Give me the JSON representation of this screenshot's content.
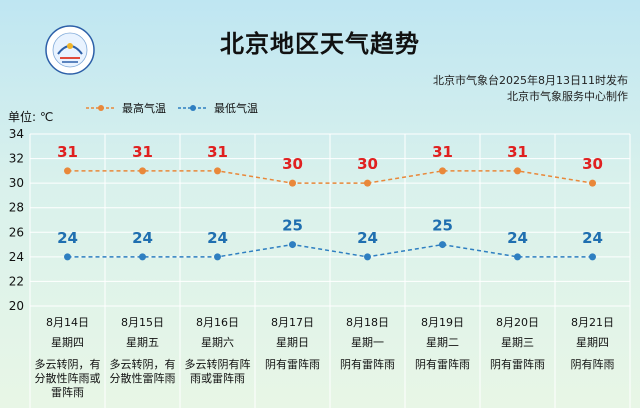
{
  "header": {
    "title": "北京地区天气趋势",
    "publisher_line1": "北京市气象台2025年8月13日11时发布",
    "publisher_line2": "北京市气象服务中心制作",
    "unit": "单位: ℃"
  },
  "colors": {
    "high": "#e9883a",
    "low": "#2f7fc1",
    "high_label": "#e02020",
    "low_label": "#1f6fb0",
    "grid": "#ffffff"
  },
  "legend": {
    "high": "最高气温",
    "low": "最低气温"
  },
  "chart_data": {
    "type": "line",
    "title": "北京地区天气趋势",
    "ylabel": "单位: ℃",
    "ylim": [
      20,
      34
    ],
    "yticks": [
      20,
      22,
      24,
      26,
      28,
      30,
      32,
      34
    ],
    "grid": true,
    "legend_position": "top-left",
    "categories": [
      "8月14日",
      "8月15日",
      "8月16日",
      "8月17日",
      "8月18日",
      "8月19日",
      "8月20日",
      "8月21日"
    ],
    "weekdays": [
      "星期四",
      "星期五",
      "星期六",
      "星期日",
      "星期一",
      "星期二",
      "星期三",
      "星期四"
    ],
    "weather": [
      [
        "多云转阴，有",
        "分散性阵雨或",
        "雷阵雨"
      ],
      [
        "多云转阴，有",
        "分散性雷阵雨"
      ],
      [
        "多云转阴有阵",
        "雨或雷阵雨"
      ],
      [
        "阴有雷阵雨"
      ],
      [
        "阴有雷阵雨"
      ],
      [
        "阴有雷阵雨"
      ],
      [
        "阴有雷阵雨"
      ],
      [
        "阴有阵雨"
      ]
    ],
    "series": [
      {
        "name": "最高气温",
        "values": [
          31,
          31,
          31,
          30,
          30,
          31,
          31,
          30
        ]
      },
      {
        "name": "最低气温",
        "values": [
          24,
          24,
          24,
          25,
          24,
          25,
          24,
          24
        ]
      }
    ]
  }
}
